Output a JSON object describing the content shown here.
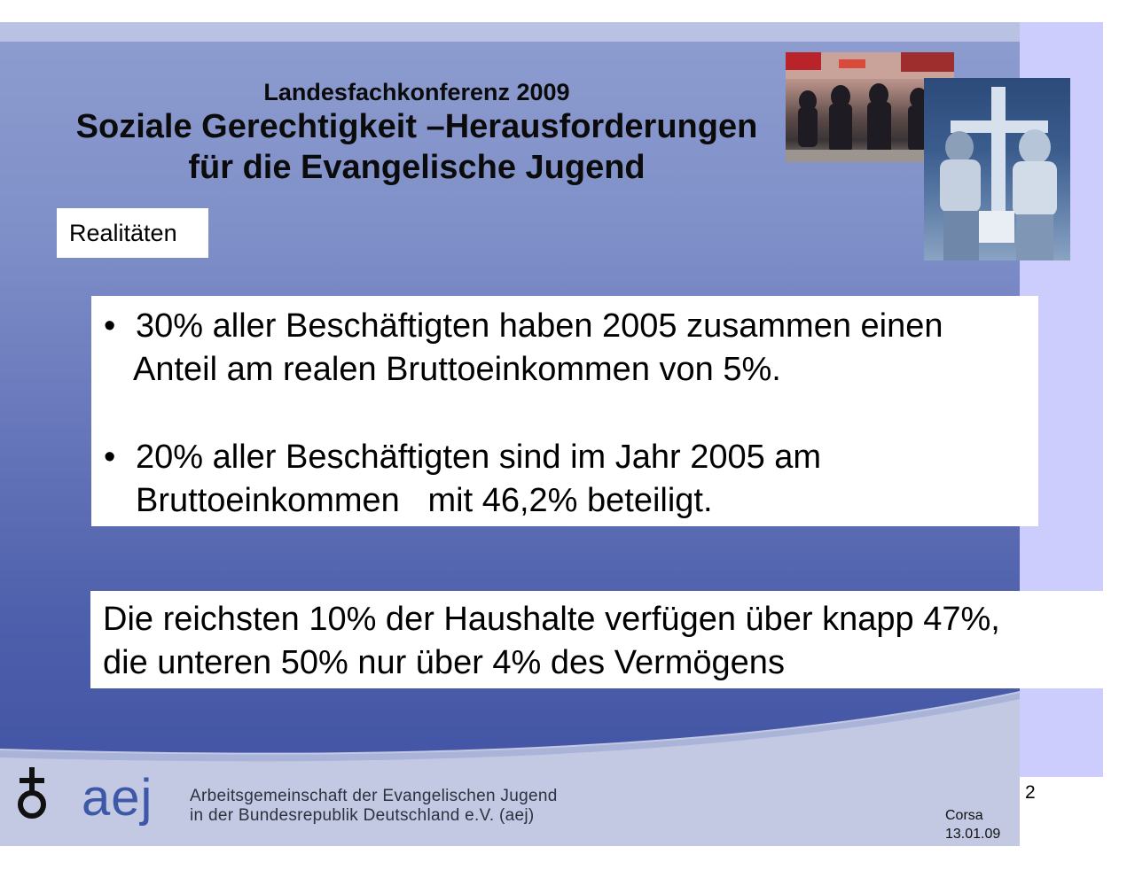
{
  "slide": {
    "conference": "Landesfachkonferenz 2009",
    "title_line1": "Soziale Gerechtigkeit –Herausforderungen",
    "title_line2": "für die Evangelische Jugend",
    "section_label": "Realitäten",
    "bullets": [
      {
        "line1": "30% aller Beschäftigten haben 2005 zusammen einen",
        "line2": "Anteil am realen Bruttoeinkommen von 5%."
      },
      {
        "line1": "20% aller Beschäftigten sind im Jahr 2005 am",
        "line2": "Bruttoeinkommen   mit 46,2% beteiligt."
      }
    ],
    "bullet_glyph": "•",
    "statement_line1": "Die reichsten 10% der Haushalte verfügen über knapp 47%,",
    "statement_line2": "die unteren 50% nur über 4% des Vermögens"
  },
  "footer": {
    "logo_text": "aej",
    "org_line1": "Arbeitsgemeinschaft der Evangelischen Jugend",
    "org_line2": "in der Bundesrepublik Deutschland e.V. (aej)",
    "author": "Corsa",
    "date": "13.01.09",
    "page_number": "2"
  },
  "icons": {
    "logo_symbol": "cross-circle-icon",
    "photo_march": "demonstration-photo",
    "photo_cross": "cross-couple-photo"
  },
  "colors": {
    "band": "#ccccfd",
    "logo_blue": "#3d58a6"
  }
}
